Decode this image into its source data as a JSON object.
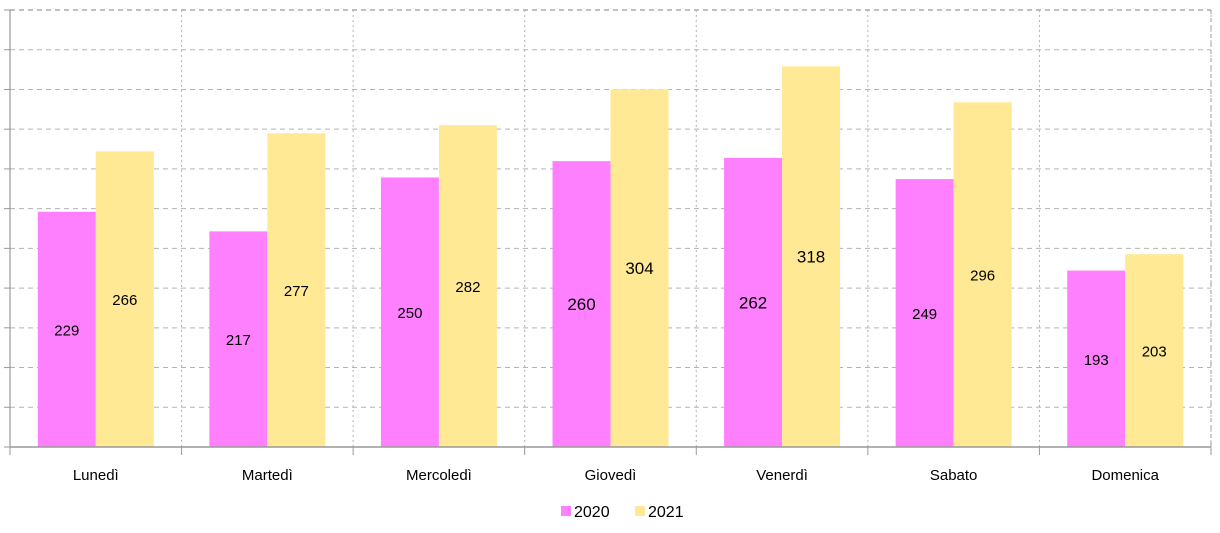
{
  "chart_data": {
    "type": "bar",
    "categories": [
      "Lunedì",
      "Martedì",
      "Mercoledì",
      "Giovedì",
      "Venerdì",
      "Sabato",
      "Domenica"
    ],
    "series": [
      {
        "name": "2020",
        "color": "#ff80ff",
        "values": [
          229,
          217,
          250,
          260,
          262,
          249,
          193
        ]
      },
      {
        "name": "2021",
        "color": "#ffe994",
        "values": [
          266,
          277,
          282,
          304,
          318,
          296,
          203
        ]
      }
    ],
    "title": "",
    "xlabel": "",
    "ylabel": "",
    "ylim": [
      85,
      352.5
    ],
    "grid": true,
    "legend_position": "bottom-center",
    "data_labels": true
  }
}
